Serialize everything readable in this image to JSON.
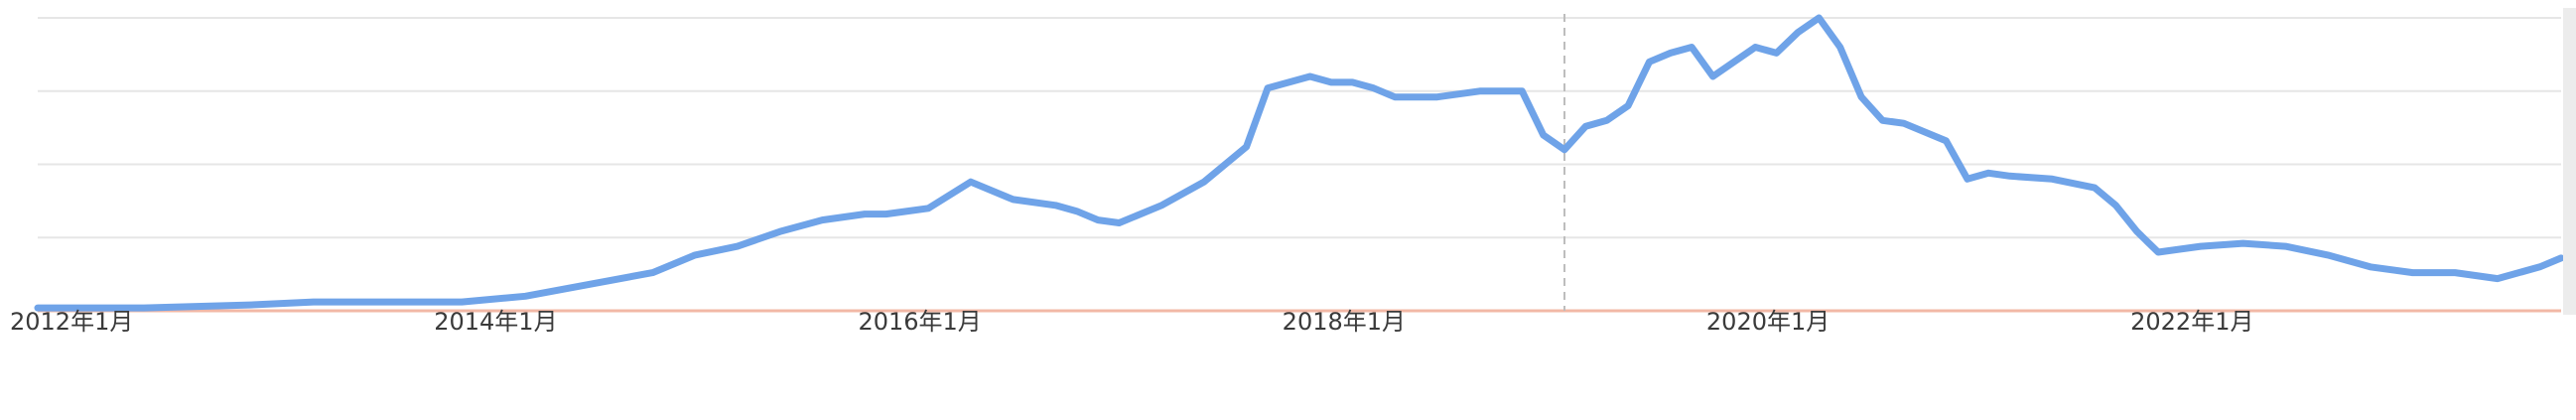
{
  "chart_data": {
    "type": "line",
    "title": "",
    "xlabel": "",
    "ylabel": "",
    "ylim": [
      0,
      100
    ],
    "grid": true,
    "x_ticks": [
      {
        "year": 2012,
        "label": "2012年1月"
      },
      {
        "year": 2014,
        "label": "2014年1月"
      },
      {
        "year": 2016,
        "label": "2016年1月"
      },
      {
        "year": 2018,
        "label": "2018年1月"
      },
      {
        "year": 2020,
        "label": "2020年1月"
      },
      {
        "year": 2022,
        "label": "2022年1月"
      }
    ],
    "xlim": [
      2012,
      2023.9
    ],
    "y_gridlines": [
      25,
      50,
      75,
      100
    ],
    "marker_x": 2019.2,
    "series_color": "#6fa3e8",
    "baseline_color": "#f2b8a6",
    "series": [
      {
        "x": [
          2012.0,
          2012.5,
          2013.0,
          2013.3,
          2013.6,
          2014.0,
          2014.3,
          2014.6,
          2014.9,
          2015.1,
          2015.3,
          2015.5,
          2015.7,
          2015.9,
          2016.0,
          2016.2,
          2016.4,
          2016.6,
          2016.8,
          2016.9,
          2017.0,
          2017.1,
          2017.3,
          2017.5,
          2017.7,
          2017.8,
          2018.0,
          2018.1,
          2018.2,
          2018.3,
          2018.4,
          2018.6,
          2018.8,
          2019.0,
          2019.1,
          2019.2,
          2019.3,
          2019.4,
          2019.5,
          2019.6,
          2019.7,
          2019.8,
          2019.9,
          2020.0,
          2020.1,
          2020.2,
          2020.3,
          2020.4,
          2020.5,
          2020.6,
          2020.7,
          2020.8,
          2021.0,
          2021.1,
          2021.2,
          2021.3,
          2021.5,
          2021.7,
          2021.8,
          2021.9,
          2022.0,
          2022.2,
          2022.4,
          2022.6,
          2022.8,
          2023.0,
          2023.2,
          2023.4,
          2023.6,
          2023.8,
          2023.9
        ],
        "values": [
          1,
          1,
          2,
          3,
          3,
          3,
          5,
          9,
          13,
          19,
          22,
          27,
          31,
          33,
          33,
          35,
          44,
          38,
          36,
          34,
          31,
          30,
          36,
          44,
          56,
          76,
          80,
          78,
          78,
          76,
          73,
          73,
          75,
          75,
          60,
          55,
          63,
          65,
          70,
          85,
          88,
          90,
          80,
          85,
          90,
          88,
          95,
          100,
          90,
          73,
          65,
          64,
          58,
          45,
          47,
          46,
          45,
          42,
          36,
          27,
          20,
          22,
          23,
          22,
          19,
          15,
          13,
          13,
          11,
          15,
          18
        ]
      }
    ]
  }
}
